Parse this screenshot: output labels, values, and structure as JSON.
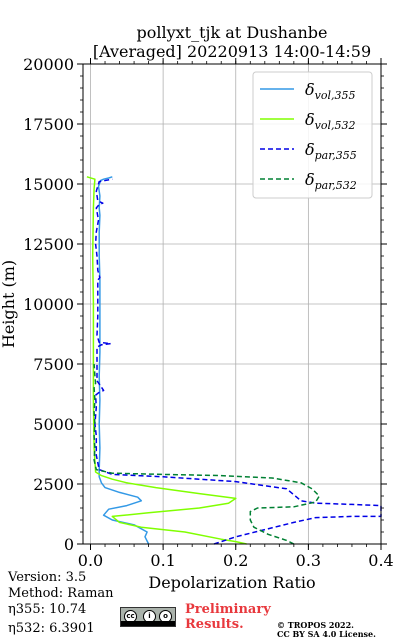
{
  "chart_data": {
    "type": "line",
    "title": "pollyxt_tjk at Dushanbe",
    "subtitle": "[Averaged] 20220913 14:00-14:59",
    "xlabel": "Depolarization Ratio",
    "ylabel": "Height (m)",
    "xlim": [
      0,
      0.4
    ],
    "ylim": [
      0,
      20000
    ],
    "xticks": [
      "0.0",
      "0.1",
      "0.2",
      "0.3",
      "0.4"
    ],
    "yticks": [
      "0",
      "2500",
      "5000",
      "7500",
      "10000",
      "12500",
      "15000",
      "17500",
      "20000"
    ],
    "grid": true,
    "legend_position": "top-right",
    "series": [
      {
        "name": "δvol,355",
        "color": "#3399e6",
        "dash": "solid",
        "points": [
          [
            0.08,
            0
          ],
          [
            0.075,
            300
          ],
          [
            0.078,
            500
          ],
          [
            0.06,
            800
          ],
          [
            0.03,
            1000
          ],
          [
            0.018,
            1200
          ],
          [
            0.025,
            1450
          ],
          [
            0.05,
            1600
          ],
          [
            0.07,
            1800
          ],
          [
            0.065,
            1950
          ],
          [
            0.04,
            2150
          ],
          [
            0.02,
            2350
          ],
          [
            0.015,
            2550
          ],
          [
            0.012,
            2800
          ],
          [
            0.012,
            3100
          ],
          [
            0.013,
            4000
          ],
          [
            0.012,
            5000
          ],
          [
            0.013,
            6000
          ],
          [
            0.012,
            7000
          ],
          [
            0.013,
            8000
          ],
          [
            0.013,
            9000
          ],
          [
            0.013,
            10000
          ],
          [
            0.013,
            11000
          ],
          [
            0.012,
            12000
          ],
          [
            0.012,
            13000
          ],
          [
            0.013,
            13700
          ],
          [
            0.012,
            14000
          ],
          [
            0.013,
            14500
          ],
          [
            0.011,
            14900
          ],
          [
            0.014,
            15150
          ],
          [
            0.018,
            15200
          ],
          [
            0.025,
            15250
          ],
          [
            0.03,
            15300
          ]
        ]
      },
      {
        "name": "δvol,532",
        "color": "#80ff00",
        "dash": "solid",
        "points": [
          [
            0.215,
            0
          ],
          [
            0.2,
            100
          ],
          [
            0.18,
            200
          ],
          [
            0.13,
            500
          ],
          [
            0.07,
            700
          ],
          [
            0.04,
            900
          ],
          [
            0.03,
            1150
          ],
          [
            0.08,
            1300
          ],
          [
            0.15,
            1500
          ],
          [
            0.19,
            1700
          ],
          [
            0.2,
            1900
          ],
          [
            0.15,
            2100
          ],
          [
            0.09,
            2350
          ],
          [
            0.05,
            2550
          ],
          [
            0.03,
            2700
          ],
          [
            0.015,
            2850
          ],
          [
            0.007,
            3000
          ],
          [
            0.005,
            4000
          ],
          [
            0.004,
            6000
          ],
          [
            0.004,
            8000
          ],
          [
            0.004,
            10000
          ],
          [
            0.003,
            12000
          ],
          [
            0.004,
            14000
          ],
          [
            0.005,
            14800
          ],
          [
            0.006,
            15200
          ],
          [
            -0.005,
            15300
          ]
        ]
      },
      {
        "name": "δpar,355",
        "color": "#0000e6",
        "dash": "dashed",
        "points": [
          [
            0.17,
            0
          ],
          [
            0.2,
            300
          ],
          [
            0.24,
            600
          ],
          [
            0.28,
            900
          ],
          [
            0.31,
            1100
          ],
          [
            0.36,
            1150
          ],
          [
            0.4,
            1150
          ],
          [
            0.4,
            1600
          ],
          [
            0.36,
            1650
          ],
          [
            0.31,
            1700
          ],
          [
            0.29,
            1800
          ],
          [
            0.27,
            2300
          ],
          [
            0.2,
            2600
          ],
          [
            0.1,
            2800
          ],
          [
            0.03,
            2900
          ],
          [
            0.012,
            3100
          ],
          [
            0.008,
            3700
          ],
          [
            0.008,
            4500
          ],
          [
            0.006,
            5000
          ],
          [
            0.008,
            5700
          ],
          [
            0.007,
            6200
          ],
          [
            0.011,
            6300
          ],
          [
            0.018,
            6400
          ],
          [
            0.009,
            6800
          ],
          [
            0.009,
            7500
          ],
          [
            0.009,
            8200
          ],
          [
            0.015,
            8300
          ],
          [
            0.028,
            8350
          ],
          [
            0.012,
            8400
          ],
          [
            0.009,
            8700
          ],
          [
            0.01,
            9500
          ],
          [
            0.01,
            10500
          ],
          [
            0.01,
            11000
          ],
          [
            0.013,
            11100
          ],
          [
            0.01,
            11400
          ],
          [
            0.009,
            12000
          ],
          [
            0.007,
            12500
          ],
          [
            0.008,
            13000
          ],
          [
            0.011,
            13500
          ],
          [
            0.008,
            14000
          ],
          [
            0.012,
            14150
          ],
          [
            0.017,
            14200
          ],
          [
            0.01,
            14300
          ],
          [
            0.008,
            14700
          ],
          [
            0.012,
            15100
          ],
          [
            0.03,
            15200
          ]
        ]
      },
      {
        "name": "δpar,532",
        "color": "#008033",
        "dash": "dashed",
        "points": [
          [
            0.28,
            0
          ],
          [
            0.27,
            150
          ],
          [
            0.245,
            400
          ],
          [
            0.225,
            700
          ],
          [
            0.22,
            1000
          ],
          [
            0.22,
            1350
          ],
          [
            0.23,
            1500
          ],
          [
            0.28,
            1550
          ],
          [
            0.31,
            1750
          ],
          [
            0.315,
            2000
          ],
          [
            0.305,
            2300
          ],
          [
            0.29,
            2550
          ],
          [
            0.25,
            2750
          ],
          [
            0.18,
            2850
          ],
          [
            0.1,
            2900
          ],
          [
            0.03,
            2950
          ],
          [
            0.008,
            3100
          ],
          [
            0.005,
            3500
          ],
          [
            0.006,
            4000
          ],
          [
            0.005,
            4500
          ],
          [
            0.006,
            5000
          ],
          [
            0.005,
            5500
          ],
          [
            0.006,
            6000
          ],
          [
            0.005,
            6500
          ],
          [
            0.007,
            6700
          ],
          [
            0.006,
            7000
          ],
          [
            0.005,
            7500
          ]
        ]
      }
    ]
  },
  "info": {
    "version": "Version: 3.5",
    "method": "Method: Raman",
    "eta355": "η355:  10.74",
    "eta532": "η532: 6.3901"
  },
  "preliminary": [
    "Preliminary",
    "Results."
  ],
  "copyright": [
    "© TROPOS 2022.",
    "CC BY SA 4.0 License."
  ]
}
